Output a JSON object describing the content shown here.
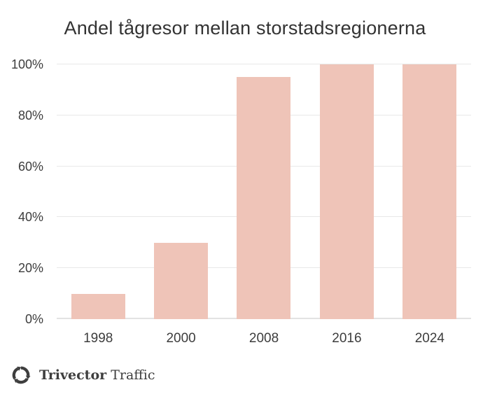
{
  "chart_data": {
    "type": "bar",
    "title": "Andel tågresor mellan storstadsregionerna",
    "categories": [
      "1998",
      "2000",
      "2008",
      "2016",
      "2024"
    ],
    "values": [
      10,
      30,
      95,
      100,
      100
    ],
    "xlabel": "",
    "ylabel": "",
    "ylim": [
      0,
      100
    ],
    "yticks": [
      0,
      20,
      40,
      60,
      80,
      100
    ],
    "ytick_labels": [
      "0%",
      "20%",
      "40%",
      "60%",
      "80%",
      "100%"
    ],
    "grid": true,
    "legend": false,
    "bar_color": "#EFC4B8"
  },
  "colors": {
    "bar": "#EFC4B8",
    "gridline": "#e8e8e8",
    "axis_line": "#e3e3e3",
    "tick_text": "#3d3d3d",
    "title_text": "#333333",
    "logo": "#3e3e3e"
  },
  "logo": {
    "brand_bold": "Trivector",
    "brand_regular": "Traffic",
    "icon": "trivector-recycle-arrows-icon"
  }
}
